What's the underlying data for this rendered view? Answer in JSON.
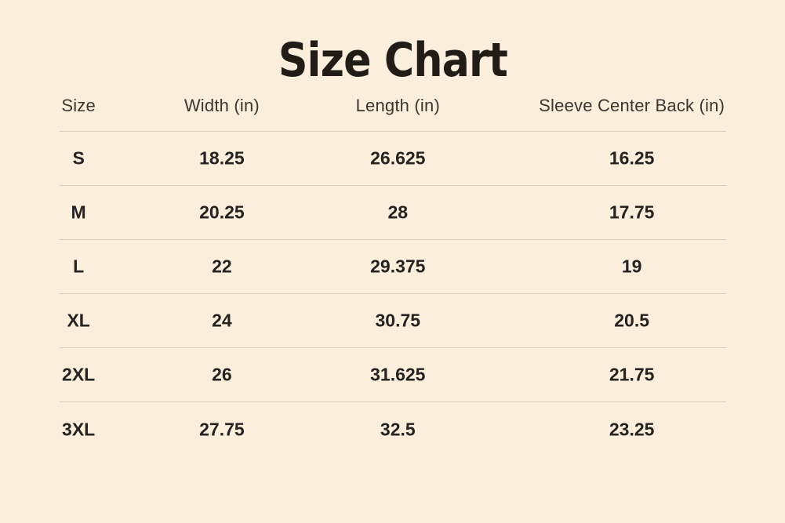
{
  "title": "Size Chart",
  "colors": {
    "bg": "#fbeedc",
    "divider": "#d9cfc0",
    "title-color": "#211c16",
    "header-color": "#3b3630",
    "data-color": "#262220"
  },
  "table": {
    "columns": [
      "Size",
      "Width (in)",
      "Length (in)",
      "Sleeve Center Back (in)"
    ],
    "rows": [
      {
        "size": "S",
        "width": "18.25",
        "length": "26.625",
        "sleeve": "16.25"
      },
      {
        "size": "M",
        "width": "20.25",
        "length": "28",
        "sleeve": "17.75"
      },
      {
        "size": "L",
        "width": "22",
        "length": "29.375",
        "sleeve": "19"
      },
      {
        "size": "XL",
        "width": "24",
        "length": "30.75",
        "sleeve": "20.5"
      },
      {
        "size": "2XL",
        "width": "26",
        "length": "31.625",
        "sleeve": "21.75"
      },
      {
        "size": "3XL",
        "width": "27.75",
        "length": "32.5",
        "sleeve": "23.25"
      }
    ]
  },
  "chart_data": {
    "type": "table",
    "title": "Size Chart",
    "columns": [
      "Size",
      "Width (in)",
      "Length (in)",
      "Sleeve Center Back (in)"
    ],
    "rows": [
      [
        "S",
        18.25,
        26.625,
        16.25
      ],
      [
        "M",
        20.25,
        28,
        17.75
      ],
      [
        "L",
        22,
        29.375,
        19
      ],
      [
        "XL",
        24,
        30.75,
        20.5
      ],
      [
        "2XL",
        26,
        31.625,
        21.75
      ],
      [
        "3XL",
        27.75,
        32.5,
        23.25
      ]
    ]
  }
}
